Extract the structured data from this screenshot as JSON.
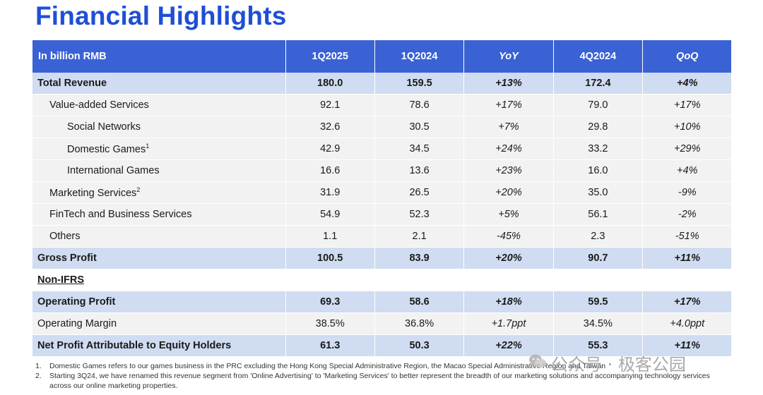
{
  "title": "Financial Highlights",
  "table": {
    "header": {
      "label": "In billion RMB",
      "cols": [
        "1Q2025",
        "1Q2024",
        "YoY",
        "4Q2024",
        "QoQ"
      ]
    },
    "rows": [
      {
        "label": "Total Revenue",
        "sup": "",
        "values": [
          "180.0",
          "159.5",
          "+13%",
          "172.4",
          "+4%"
        ]
      },
      {
        "label": "Value-added Services",
        "sup": "",
        "values": [
          "92.1",
          "78.6",
          "+17%",
          "79.0",
          "+17%"
        ]
      },
      {
        "label": "Social Networks",
        "sup": "",
        "values": [
          "32.6",
          "30.5",
          "+7%",
          "29.8",
          "+10%"
        ]
      },
      {
        "label": "Domestic Games",
        "sup": "1",
        "values": [
          "42.9",
          "34.5",
          "+24%",
          "33.2",
          "+29%"
        ]
      },
      {
        "label": "International Games",
        "sup": "",
        "values": [
          "16.6",
          "13.6",
          "+23%",
          "16.0",
          "+4%"
        ]
      },
      {
        "label": "Marketing Services",
        "sup": "2",
        "values": [
          "31.9",
          "26.5",
          "+20%",
          "35.0",
          "-9%"
        ]
      },
      {
        "label": "FinTech and Business Services",
        "sup": "",
        "values": [
          "54.9",
          "52.3",
          "+5%",
          "56.1",
          "-2%"
        ]
      },
      {
        "label": "Others",
        "sup": "",
        "values": [
          "1.1",
          "2.1",
          "-45%",
          "2.3",
          "-51%"
        ]
      },
      {
        "label": "Gross Profit",
        "sup": "",
        "values": [
          "100.5",
          "83.9",
          "+20%",
          "90.7",
          "+11%"
        ]
      }
    ],
    "section_label": "Non-IFRS",
    "nonifrs_rows": [
      {
        "label": "Operating Profit",
        "values": [
          "69.3",
          "58.6",
          "+18%",
          "59.5",
          "+17%"
        ]
      },
      {
        "label": "Operating Margin",
        "values": [
          "38.5%",
          "36.8%",
          "+1.7ppt",
          "34.5%",
          "+4.0ppt"
        ]
      },
      {
        "label": "Net Profit Attributable to Equity Holders",
        "values": [
          "61.3",
          "50.3",
          "+22%",
          "55.3",
          "+11%"
        ]
      }
    ]
  },
  "footnotes": [
    {
      "num": "1.",
      "text": "Domestic Games refers to our games business in the PRC excluding the Hong Kong Special Administrative Region, the Macao Special Administrative Region and Taiwan"
    },
    {
      "num": "2.",
      "text": "Starting 3Q24, we have renamed this revenue segment from 'Online Advertising' to 'Marketing Services' to better represent the breadth of our marketing solutions and accompanying technology services across our online marketing properties."
    }
  ],
  "watermark": "公众号 · 极客公园"
}
